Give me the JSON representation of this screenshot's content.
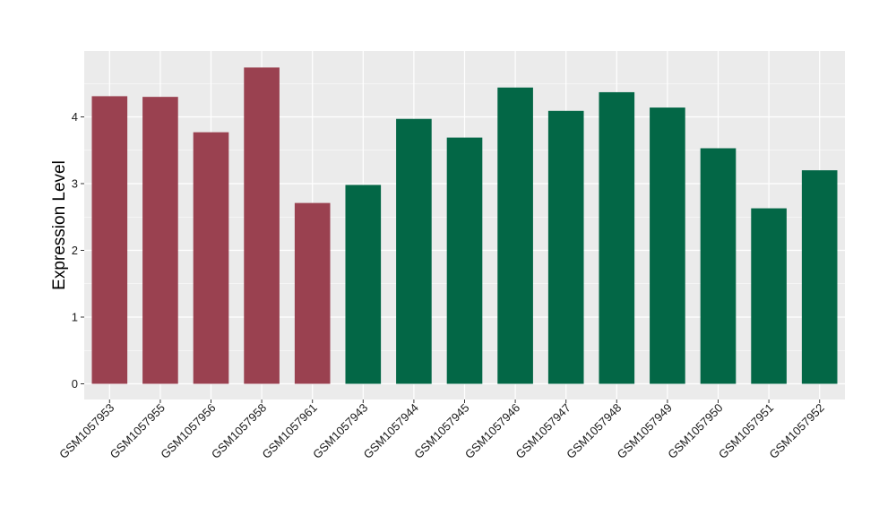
{
  "chart_data": {
    "type": "bar",
    "ylabel": "Expression Level",
    "xlabel": "",
    "ylim": [
      0,
      5
    ],
    "yticks": [
      0,
      1,
      2,
      3,
      4
    ],
    "grid": true,
    "legend": "none",
    "categories": [
      "GSM1057953",
      "GSM1057955",
      "GSM1057956",
      "GSM1057958",
      "GSM1057961",
      "GSM1057943",
      "GSM1057944",
      "GSM1057945",
      "GSM1057946",
      "GSM1057947",
      "GSM1057948",
      "GSM1057949",
      "GSM1057950",
      "GSM1057951",
      "GSM1057952"
    ],
    "values": [
      4.31,
      4.3,
      3.77,
      4.74,
      2.71,
      2.98,
      3.97,
      3.69,
      4.44,
      4.09,
      4.37,
      4.14,
      3.53,
      2.63,
      3.2
    ],
    "bar_colors": [
      "#9A4150",
      "#9A4150",
      "#9A4150",
      "#9A4150",
      "#9A4150",
      "#036746",
      "#036746",
      "#036746",
      "#036746",
      "#036746",
      "#036746",
      "#036746",
      "#036746",
      "#036746",
      "#036746"
    ],
    "panel_background": "#EBEBEB",
    "grid_color": "#FFFFFF"
  }
}
